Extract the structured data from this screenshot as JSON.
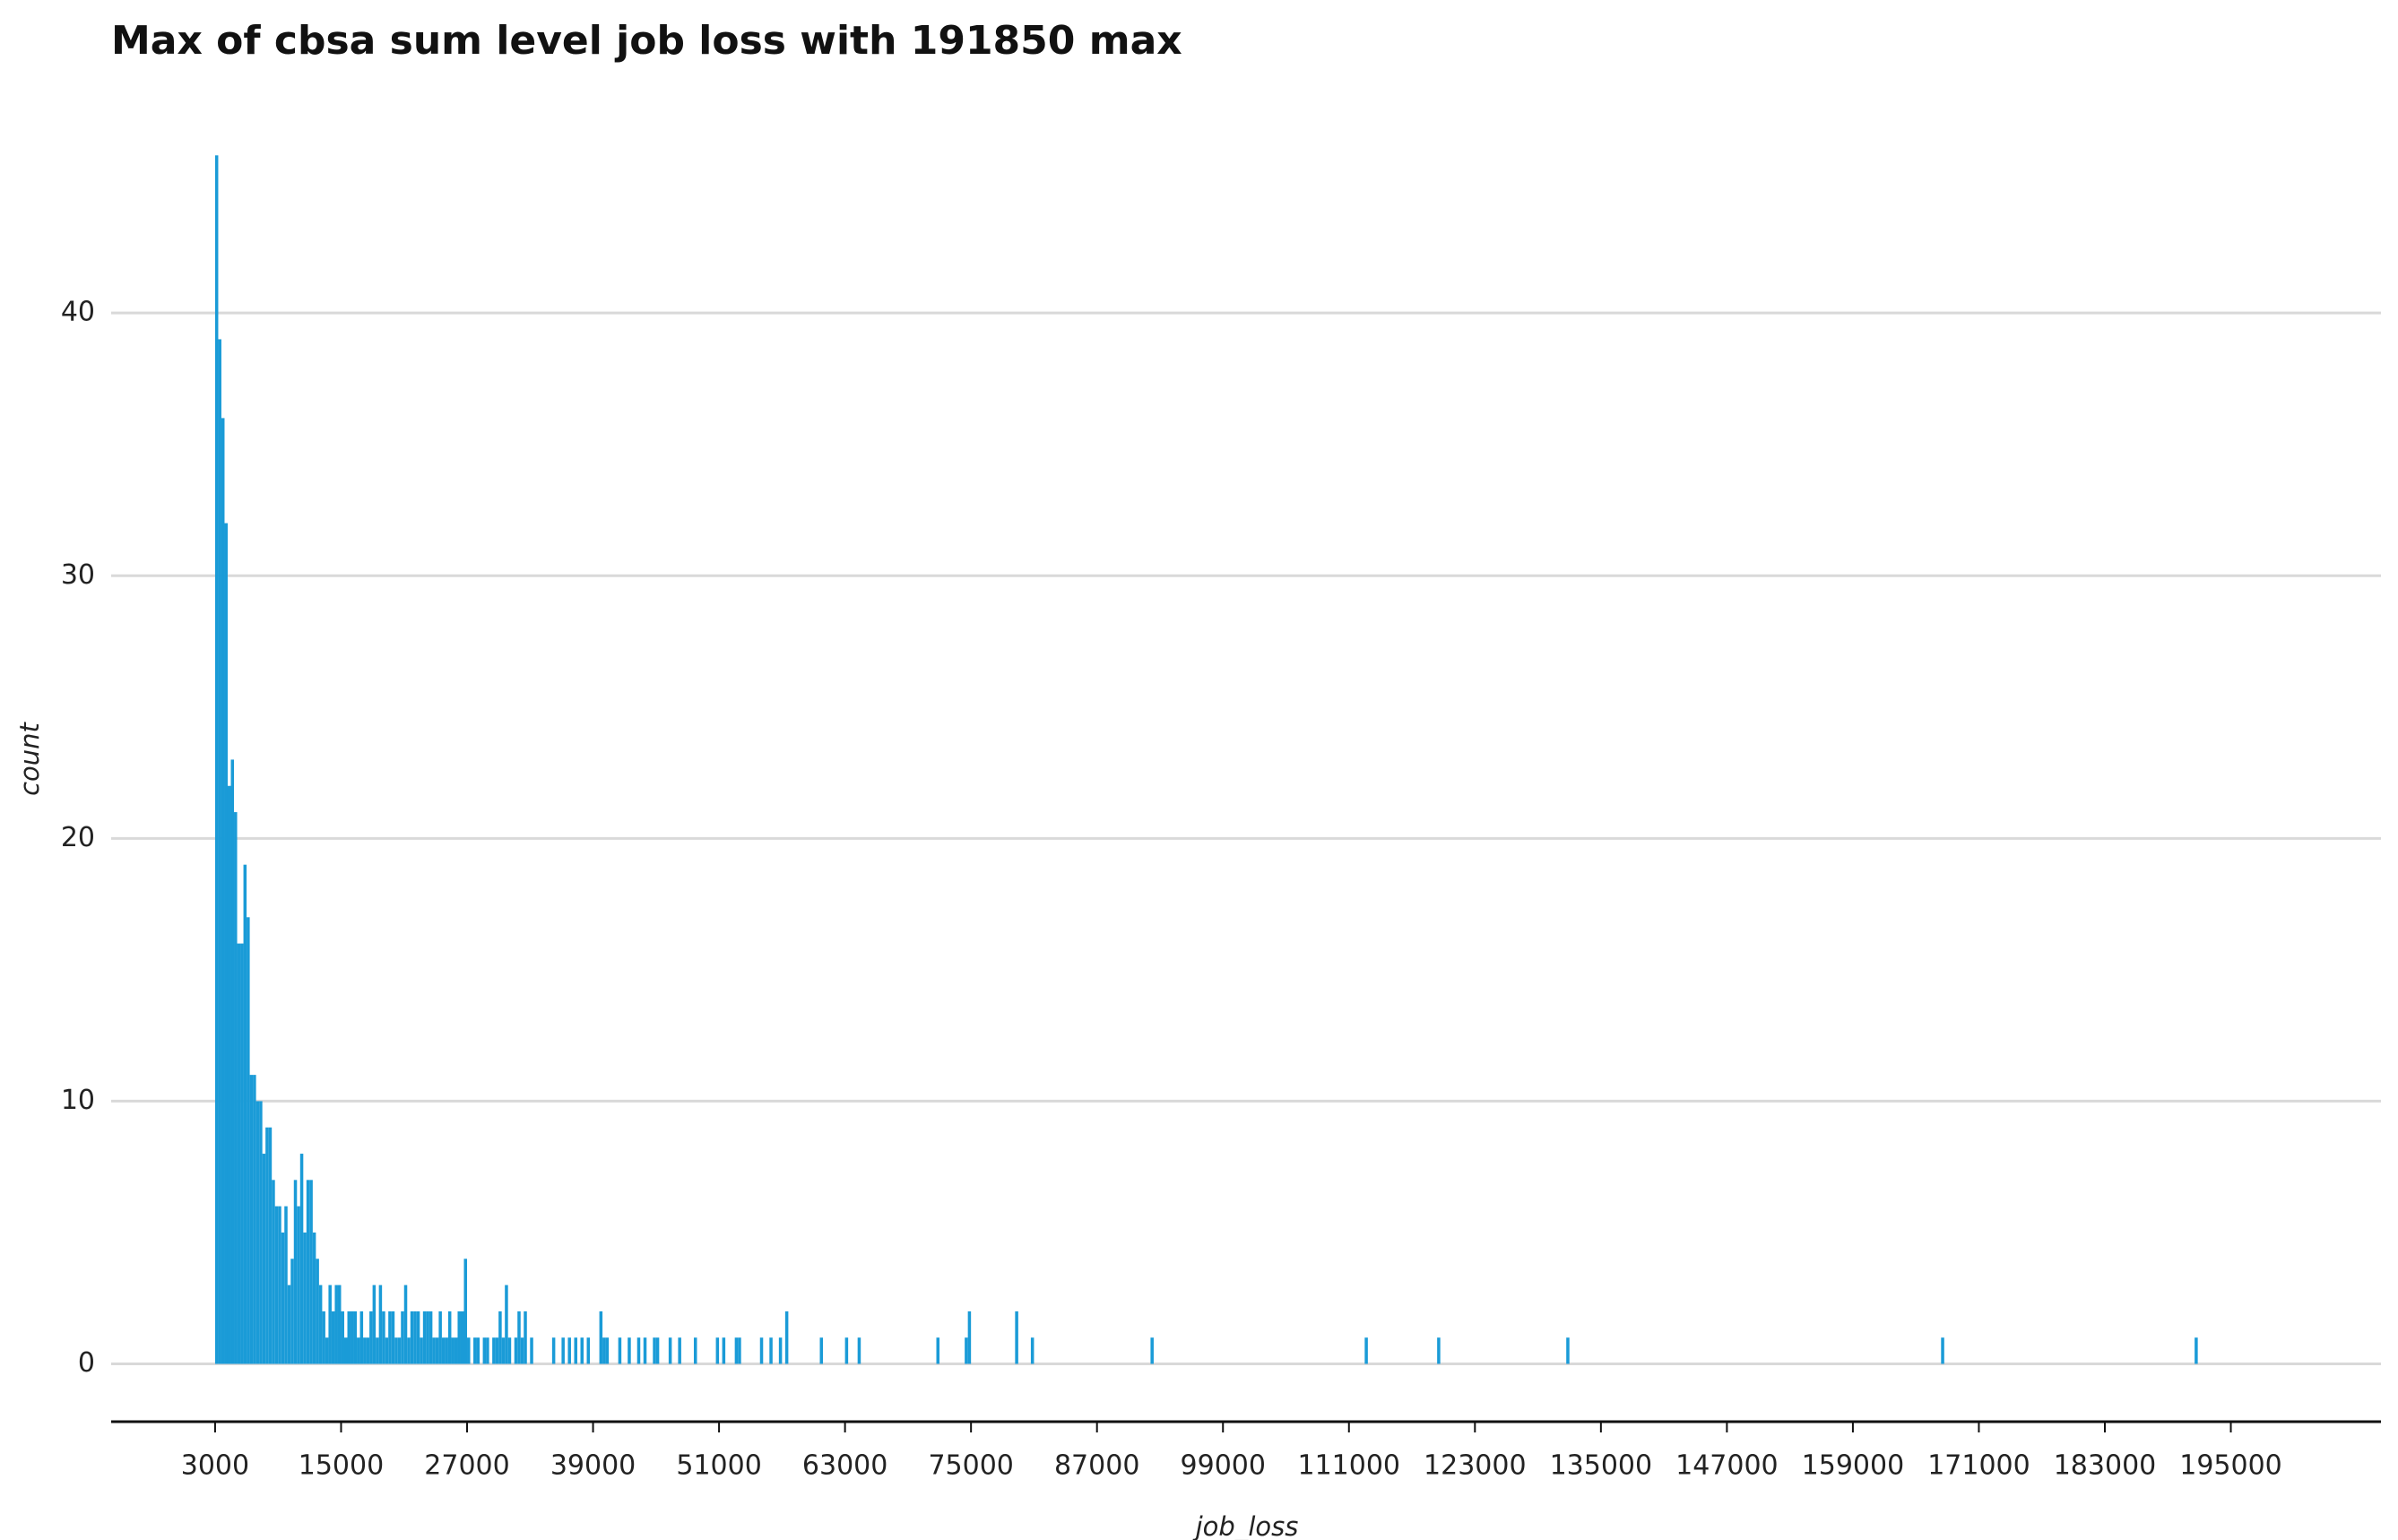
{
  "chart_data": {
    "type": "histogram",
    "title": "Max of cbsa sum level job loss with 191850 max",
    "x_label": "job_loss",
    "y_label": "count",
    "color": "#1a9bd7",
    "grid": true,
    "bins": [
      3000,
      3300,
      3600,
      3900,
      4200,
      4500,
      4800,
      5100,
      5400,
      5700,
      6000,
      6300,
      6600,
      6900,
      7200,
      7500,
      7800,
      8100,
      8400,
      8700,
      9000,
      9300,
      9600,
      9900,
      10200,
      10500,
      10800,
      11100,
      11400,
      11700,
      12000,
      12300,
      12600,
      12900,
      13200,
      13500,
      13800,
      14100,
      14400,
      14700,
      15000,
      15300,
      15600,
      15900,
      16200,
      16500,
      16800,
      17100,
      17400,
      17700,
      18000,
      18300,
      18600,
      18900,
      19200,
      19500,
      19800,
      20100,
      20400,
      20700,
      21000,
      21300,
      21600,
      21900,
      22200,
      22500,
      22800,
      23100,
      23400,
      23700,
      24000,
      24300,
      24600,
      24900,
      25200,
      25500,
      25800,
      26100,
      26400,
      26700,
      27000,
      27300,
      27600,
      27900,
      28200,
      28500,
      28800,
      29100,
      29400,
      29700,
      30000,
      30300,
      30600,
      30900,
      31200,
      31500,
      31800,
      32100,
      32400,
      32700,
      33000,
      33300,
      35100,
      35400,
      36000,
      36300,
      36600,
      36900,
      37200,
      37500,
      37800,
      38100,
      38400,
      38700,
      39600,
      39900,
      40200,
      40500,
      41400,
      41700,
      42300,
      42600,
      43200,
      43500,
      43800,
      44100,
      44700,
      45000,
      45300,
      46200,
      46500,
      47100,
      47400,
      48600,
      48900,
      50700,
      51000,
      51300,
      51600,
      52500,
      52800,
      53100,
      54900,
      55200,
      55800,
      56100,
      56700,
      57000,
      57300,
      57600,
      60600,
      60900,
      63000,
      63300,
      64200,
      64500,
      71700,
      72000,
      74400,
      74700,
      75000,
      79200,
      79500,
      80700,
      81000,
      92100,
      92400,
      112500,
      112800,
      119400,
      119700,
      131700,
      132000,
      167400,
      167700,
      191550,
      191850
    ],
    "counts": [
      46,
      39,
      36,
      32,
      22,
      23,
      21,
      16,
      16,
      19,
      17,
      11,
      11,
      10,
      10,
      8,
      9,
      9,
      7,
      6,
      6,
      5,
      6,
      3,
      4,
      7,
      6,
      8,
      5,
      7,
      7,
      5,
      4,
      3,
      2,
      1,
      3,
      2,
      3,
      3,
      2,
      1,
      2,
      2,
      2,
      1,
      2,
      1,
      1,
      2,
      3,
      1,
      3,
      2,
      1,
      2,
      2,
      1,
      1,
      2,
      3,
      1,
      2,
      2,
      2,
      1,
      2,
      2,
      2,
      1,
      1,
      2,
      1,
      1,
      2,
      1,
      1,
      2,
      2,
      4,
      1,
      0,
      1,
      1,
      0,
      1,
      1,
      0,
      1,
      1,
      2,
      1,
      3,
      1,
      0,
      1,
      2,
      1,
      2,
      0,
      1,
      0,
      1,
      0,
      1,
      0,
      1,
      0,
      1,
      0,
      1,
      0,
      1,
      0,
      2,
      1,
      1,
      0,
      1,
      0,
      1,
      0,
      1,
      0,
      1,
      0,
      1,
      1,
      0,
      1,
      0,
      1,
      0,
      1,
      0,
      1,
      0,
      1,
      0,
      1,
      1,
      0,
      1,
      0,
      1,
      0,
      1,
      0,
      2,
      0,
      1,
      0,
      1,
      0,
      1,
      0,
      1,
      0,
      1,
      2,
      0,
      2,
      0,
      1,
      0,
      1,
      0,
      1,
      0,
      1,
      0,
      1,
      0,
      1,
      0,
      1
    ],
    "xlim": [
      -6900,
      209300
    ],
    "ylim": [
      -2.2,
      47
    ],
    "xticks": [
      3000,
      15000,
      27000,
      39000,
      51000,
      63000,
      75000,
      87000,
      99000,
      111000,
      123000,
      135000,
      147000,
      159000,
      171000,
      183000,
      195000
    ],
    "yticks": [
      0,
      10,
      20,
      30,
      40
    ]
  }
}
